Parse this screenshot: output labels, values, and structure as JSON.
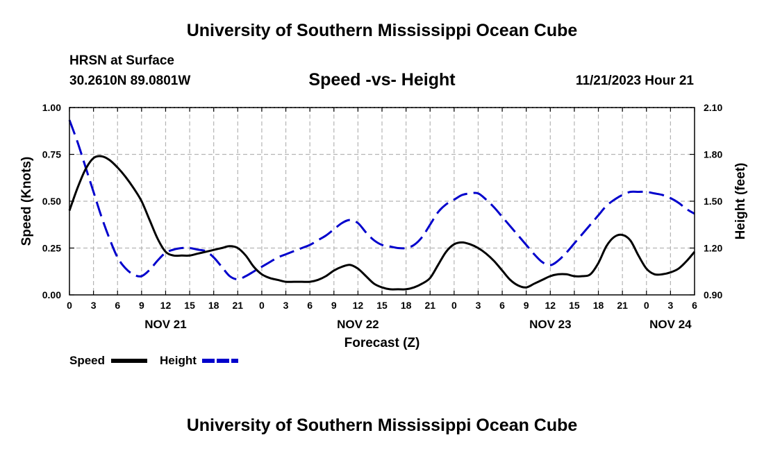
{
  "header": {
    "title": "University of Southern Mississippi Ocean Cube",
    "station": "HRSN at Surface",
    "coords": "30.2610N  89.0801W",
    "subtitle": "Speed -vs- Height",
    "datetime": "11/21/2023 Hour 21",
    "footer_title": "University of Southern Mississippi Ocean Cube"
  },
  "chart_data": {
    "type": "line",
    "title": "Speed -vs- Height",
    "xlabel": "Forecast (Z)",
    "ylabel_left": "Speed (Knots)",
    "ylabel_right": "Height (feet)",
    "x_unit": "forecast hour",
    "xlim": [
      0,
      78
    ],
    "x_ticks": [
      0,
      3,
      6,
      9,
      12,
      15,
      18,
      21,
      24,
      27,
      30,
      33,
      36,
      39,
      42,
      45,
      48,
      51,
      54,
      57,
      60,
      63,
      66,
      69,
      72,
      75,
      78
    ],
    "x_tick_labels": [
      "0",
      "3",
      "6",
      "9",
      "12",
      "15",
      "18",
      "21",
      "0",
      "3",
      "6",
      "9",
      "12",
      "15",
      "18",
      "21",
      "0",
      "3",
      "6",
      "9",
      "12",
      "15",
      "18",
      "21",
      "0",
      "3",
      "6"
    ],
    "date_labels": [
      {
        "x": 12,
        "label": "NOV 21"
      },
      {
        "x": 36,
        "label": "NOV 22"
      },
      {
        "x": 60,
        "label": "NOV 23"
      },
      {
        "x": 75,
        "label": "NOV 24"
      }
    ],
    "ylim_left": [
      0,
      1
    ],
    "y_ticks_left": [
      "0.00",
      "0.25",
      "0.50",
      "0.75",
      "1.00"
    ],
    "ylim_right": [
      0.9,
      2.1
    ],
    "y_ticks_right": [
      "0.90",
      "1.20",
      "1.50",
      "1.80",
      "2.10"
    ],
    "grid": true,
    "legend_position": "bottom-left",
    "series": [
      {
        "name": "Speed",
        "axis": "left",
        "color": "#000000",
        "dash": "solid",
        "x": [
          0,
          1,
          2,
          3,
          4,
          5,
          6,
          7,
          8,
          9,
          10,
          11,
          12,
          13,
          14,
          15,
          16,
          17,
          18,
          19,
          20,
          21,
          22,
          23,
          24,
          25,
          26,
          27,
          28,
          29,
          30,
          31,
          32,
          33,
          34,
          35,
          36,
          37,
          38,
          39,
          40,
          41,
          42,
          43,
          44,
          45,
          46,
          47,
          48,
          49,
          50,
          51,
          52,
          53,
          54,
          55,
          56,
          57,
          58,
          59,
          60,
          61,
          62,
          63,
          64,
          65,
          66,
          67,
          68,
          69,
          70,
          71,
          72,
          73,
          74,
          75,
          76,
          77,
          78
        ],
        "values": [
          0.45,
          0.57,
          0.67,
          0.73,
          0.74,
          0.72,
          0.68,
          0.63,
          0.57,
          0.5,
          0.4,
          0.3,
          0.23,
          0.21,
          0.21,
          0.21,
          0.22,
          0.23,
          0.24,
          0.25,
          0.26,
          0.25,
          0.21,
          0.15,
          0.11,
          0.09,
          0.08,
          0.07,
          0.07,
          0.07,
          0.07,
          0.08,
          0.1,
          0.13,
          0.15,
          0.16,
          0.14,
          0.1,
          0.06,
          0.04,
          0.03,
          0.03,
          0.03,
          0.04,
          0.06,
          0.09,
          0.16,
          0.23,
          0.27,
          0.28,
          0.27,
          0.25,
          0.22,
          0.18,
          0.13,
          0.08,
          0.05,
          0.04,
          0.06,
          0.08,
          0.1,
          0.11,
          0.11,
          0.1,
          0.1,
          0.11,
          0.17,
          0.26,
          0.31,
          0.32,
          0.29,
          0.21,
          0.14,
          0.11,
          0.11,
          0.12,
          0.14,
          0.18,
          0.23
        ]
      },
      {
        "name": "Height",
        "axis": "right",
        "color": "#0000cc",
        "dash": "dashed",
        "x": [
          0,
          1,
          2,
          3,
          4,
          5,
          6,
          7,
          8,
          9,
          10,
          11,
          12,
          13,
          14,
          15,
          16,
          17,
          18,
          19,
          20,
          21,
          22,
          23,
          24,
          25,
          26,
          27,
          28,
          29,
          30,
          31,
          32,
          33,
          34,
          35,
          36,
          37,
          38,
          39,
          40,
          41,
          42,
          43,
          44,
          45,
          46,
          47,
          48,
          49,
          50,
          51,
          52,
          53,
          54,
          55,
          56,
          57,
          58,
          59,
          60,
          61,
          62,
          63,
          64,
          65,
          66,
          67,
          68,
          69,
          70,
          71,
          72,
          73,
          74,
          75,
          76,
          77,
          78
        ],
        "values": [
          2.02,
          1.88,
          1.72,
          1.56,
          1.4,
          1.26,
          1.14,
          1.07,
          1.03,
          1.02,
          1.06,
          1.12,
          1.17,
          1.19,
          1.2,
          1.2,
          1.19,
          1.18,
          1.14,
          1.08,
          1.02,
          1.0,
          1.02,
          1.05,
          1.08,
          1.11,
          1.14,
          1.16,
          1.18,
          1.2,
          1.22,
          1.25,
          1.28,
          1.32,
          1.36,
          1.38,
          1.36,
          1.3,
          1.25,
          1.22,
          1.21,
          1.2,
          1.2,
          1.22,
          1.27,
          1.35,
          1.43,
          1.48,
          1.51,
          1.54,
          1.55,
          1.55,
          1.51,
          1.46,
          1.4,
          1.34,
          1.28,
          1.22,
          1.16,
          1.11,
          1.09,
          1.12,
          1.17,
          1.23,
          1.29,
          1.35,
          1.41,
          1.47,
          1.51,
          1.54,
          1.56,
          1.56,
          1.56,
          1.55,
          1.54,
          1.52,
          1.49,
          1.45,
          1.42
        ]
      }
    ],
    "legend": [
      {
        "label": "Speed",
        "color": "#000000"
      },
      {
        "label": "Height",
        "color": "#0000cc"
      }
    ]
  }
}
